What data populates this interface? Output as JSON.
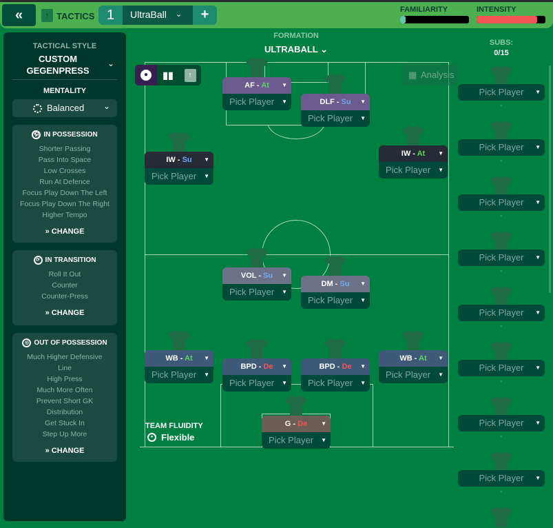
{
  "topbar": {
    "back_icon": "double-chevron-left",
    "tactics_label": "TACTICS",
    "tactic_number": "1",
    "tactic_name": "UltraBall",
    "add_label": "+",
    "familiarity": {
      "label": "FAMILIARITY",
      "value_percent": 5,
      "color": "#5fc8a8"
    },
    "intensity": {
      "label": "INTENSITY",
      "value_percent": 88,
      "color": "#f25555"
    }
  },
  "left": {
    "style_label": "TACTICAL STYLE",
    "style_line1": "CUSTOM",
    "style_line2": "GEGENPRESS",
    "mentality_label": "MENTALITY",
    "mentality_value": "Balanced",
    "sections": [
      {
        "title": "IN POSSESSION",
        "items": [
          "Shorter Passing",
          "Pass Into Space",
          "Low Crosses",
          "Run At Defence",
          "Focus Play Down The Left",
          "Focus Play Down The Right",
          "Higher Tempo"
        ],
        "change": "CHANGE"
      },
      {
        "title": "IN TRANSITION",
        "items": [
          "Roll It Out",
          "Counter",
          "Counter-Press"
        ],
        "change": "CHANGE"
      },
      {
        "title": "OUT OF POSSESSION",
        "items": [
          "Much Higher Defensive",
          "Line",
          "High Press",
          "Much More Often",
          "Prevent Short GK",
          "Distribution",
          "Get Stuck In",
          "Step Up More"
        ],
        "change": "CHANGE"
      }
    ]
  },
  "formation": {
    "label": "FORMATION",
    "name": "ULTRABALL",
    "analysis": "Analysis",
    "team_fluidity_label": "TEAM FLUIDITY",
    "team_fluidity_value": "Flexible"
  },
  "positions": [
    {
      "role": "AF",
      "duty": "At",
      "pick": "Pick Player"
    },
    {
      "role": "DLF",
      "duty": "Su",
      "pick": "Pick Player"
    },
    {
      "role": "IW",
      "duty": "Su",
      "pick": "Pick Player"
    },
    {
      "role": "IW",
      "duty": "At",
      "pick": "Pick Player"
    },
    {
      "role": "VOL",
      "duty": "Su",
      "pick": "Pick Player"
    },
    {
      "role": "DM",
      "duty": "Su",
      "pick": "Pick Player"
    },
    {
      "role": "WB",
      "duty": "At",
      "pick": "Pick Player"
    },
    {
      "role": "BPD",
      "duty": "De",
      "pick": "Pick Player"
    },
    {
      "role": "BPD",
      "duty": "De",
      "pick": "Pick Player"
    },
    {
      "role": "WB",
      "duty": "At",
      "pick": "Pick Player"
    },
    {
      "role": "G",
      "duty": "De",
      "pick": "Pick Player"
    }
  ],
  "duty_colors": {
    "At": "#5fd35f",
    "Su": "#6fa8f0",
    "De": "#f25555"
  },
  "subs": {
    "label": "SUBS:",
    "count": "0/15",
    "slots": [
      "Pick Player",
      "Pick Player",
      "Pick Player",
      "Pick Player",
      "Pick Player",
      "Pick Player",
      "Pick Player",
      "Pick Player"
    ],
    "empty": "-"
  }
}
